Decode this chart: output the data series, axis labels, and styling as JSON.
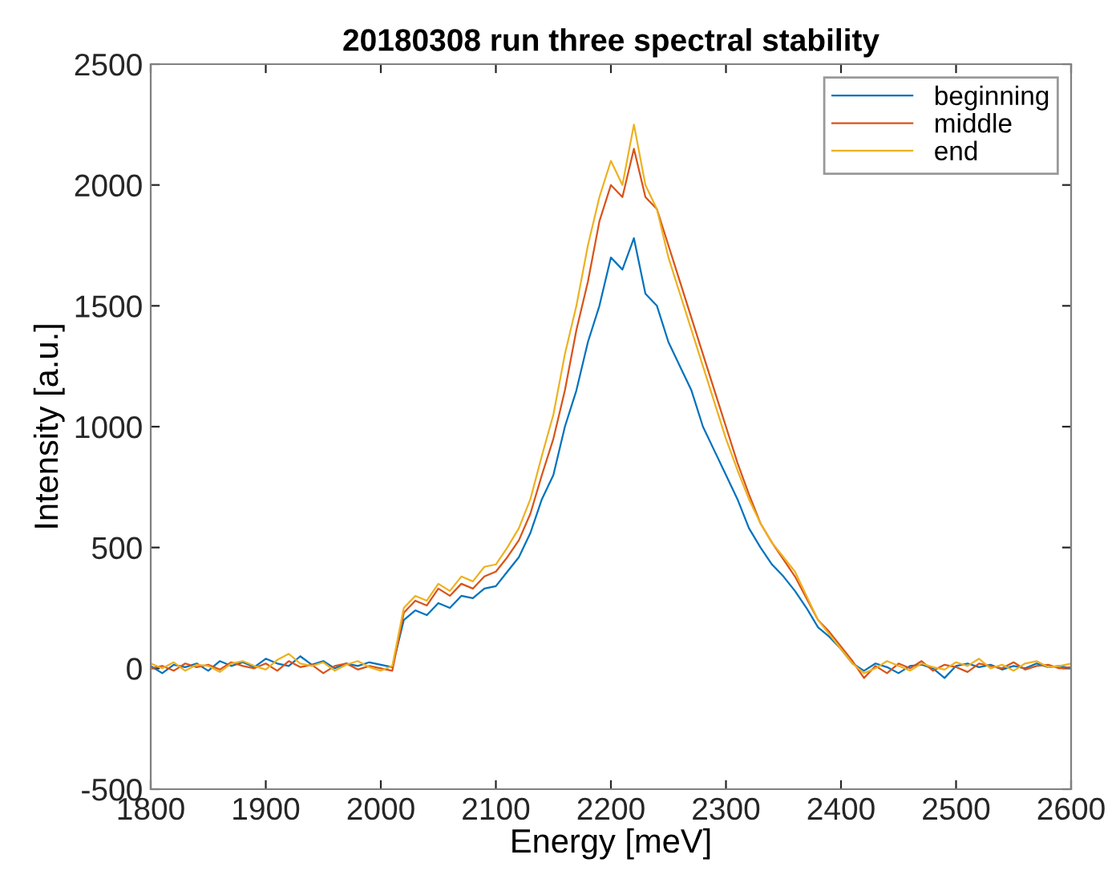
{
  "chart_data": {
    "type": "line",
    "title": "20180308 run three spectral stability",
    "xlabel": "Energy [meV]",
    "ylabel": "Intensity [a.u.]",
    "x": [
      1800,
      1810,
      1820,
      1830,
      1840,
      1850,
      1860,
      1870,
      1880,
      1890,
      1900,
      1910,
      1920,
      1930,
      1940,
      1950,
      1960,
      1970,
      1980,
      1990,
      2000,
      2010,
      2020,
      2030,
      2040,
      2050,
      2060,
      2070,
      2080,
      2090,
      2100,
      2110,
      2120,
      2130,
      2140,
      2150,
      2160,
      2170,
      2180,
      2190,
      2200,
      2210,
      2220,
      2230,
      2240,
      2250,
      2260,
      2270,
      2280,
      2290,
      2300,
      2310,
      2320,
      2330,
      2340,
      2350,
      2360,
      2370,
      2380,
      2390,
      2400,
      2410,
      2420,
      2430,
      2440,
      2450,
      2460,
      2470,
      2480,
      2490,
      2500,
      2510,
      2520,
      2530,
      2540,
      2550,
      2560,
      2570,
      2580,
      2590,
      2600
    ],
    "series": [
      {
        "name": "beginning",
        "color": "#0072bd",
        "values": [
          10,
          -20,
          15,
          5,
          20,
          -10,
          30,
          10,
          25,
          5,
          40,
          20,
          10,
          50,
          15,
          30,
          0,
          20,
          10,
          25,
          15,
          5,
          200,
          240,
          220,
          270,
          250,
          300,
          290,
          330,
          340,
          400,
          460,
          560,
          700,
          800,
          1000,
          1150,
          1350,
          1500,
          1700,
          1650,
          1780,
          1550,
          1500,
          1350,
          1250,
          1150,
          1000,
          900,
          800,
          700,
          580,
          500,
          430,
          380,
          320,
          250,
          170,
          130,
          80,
          20,
          -10,
          20,
          5,
          -20,
          10,
          15,
          0,
          -40,
          10,
          20,
          5,
          15,
          -5,
          10,
          0,
          20,
          5,
          10,
          0
        ]
      },
      {
        "name": "middle",
        "color": "#d95319",
        "values": [
          0,
          10,
          -10,
          20,
          5,
          15,
          -5,
          25,
          10,
          0,
          20,
          -10,
          30,
          5,
          15,
          -20,
          10,
          20,
          -5,
          10,
          0,
          -10,
          230,
          280,
          260,
          330,
          300,
          350,
          330,
          380,
          400,
          460,
          530,
          640,
          800,
          950,
          1150,
          1400,
          1600,
          1850,
          2000,
          1950,
          2150,
          1950,
          1900,
          1750,
          1600,
          1450,
          1300,
          1150,
          1000,
          850,
          720,
          600,
          520,
          450,
          380,
          290,
          200,
          150,
          90,
          30,
          -40,
          10,
          -20,
          20,
          0,
          30,
          -10,
          15,
          5,
          -15,
          20,
          10,
          0,
          25,
          -5,
          10,
          15,
          0,
          5
        ]
      },
      {
        "name": "end",
        "color": "#edb120",
        "values": [
          20,
          0,
          25,
          -10,
          15,
          10,
          -15,
          20,
          30,
          10,
          -5,
          35,
          60,
          20,
          10,
          25,
          -10,
          15,
          30,
          5,
          -10,
          10,
          250,
          300,
          280,
          350,
          320,
          380,
          360,
          420,
          430,
          500,
          580,
          700,
          880,
          1050,
          1300,
          1500,
          1750,
          1950,
          2100,
          2000,
          2250,
          2000,
          1900,
          1700,
          1550,
          1400,
          1250,
          1100,
          950,
          820,
          700,
          600,
          520,
          460,
          400,
          300,
          200,
          140,
          80,
          20,
          -20,
          0,
          30,
          10,
          -10,
          20,
          5,
          -5,
          25,
          10,
          40,
          0,
          15,
          -10,
          20,
          30,
          5,
          10,
          20
        ]
      }
    ],
    "xlim": [
      1800,
      2600
    ],
    "xticks": [
      1800,
      1900,
      2000,
      2100,
      2200,
      2300,
      2400,
      2500,
      2600
    ],
    "ylim": [
      -500,
      2500
    ],
    "yticks": [
      -500,
      0,
      500,
      1000,
      1500,
      2000,
      2500
    ],
    "grid": false,
    "legend": "top right",
    "marker": "none",
    "line_style": "solid"
  }
}
